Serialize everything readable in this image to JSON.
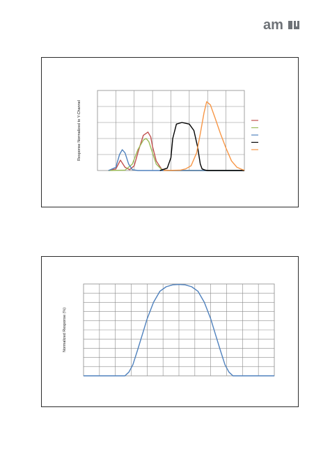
{
  "logo": {
    "text": "am",
    "color": "#6e7277"
  },
  "chart_data": [
    {
      "type": "line",
      "title": "",
      "xlabel": "",
      "ylabel": "Response Normalized to Y-Channel",
      "grid": true,
      "legend": "right",
      "xlim": [
        0,
        8
      ],
      "ylim": [
        0,
        5
      ],
      "series": [
        {
          "color": "#c0504d",
          "x": [
            0.6,
            1.0,
            1.25,
            1.5,
            1.75,
            2.0,
            2.25,
            2.5,
            2.75,
            2.9,
            3.0,
            3.2,
            3.5,
            3.75,
            4.0,
            4.3,
            8.0
          ],
          "values": [
            0,
            0.1,
            0.65,
            0.2,
            0.05,
            0.3,
            1.3,
            2.2,
            2.4,
            2.1,
            1.5,
            0.6,
            0.08,
            0.02,
            0,
            0,
            0
          ]
        },
        {
          "color": "#9bbb59",
          "x": [
            0.6,
            1.5,
            1.9,
            2.2,
            2.5,
            2.65,
            2.8,
            3.0,
            3.2,
            3.5,
            3.8,
            8.0
          ],
          "values": [
            0,
            0.02,
            0.4,
            1.3,
            1.9,
            2.0,
            1.8,
            1.1,
            0.4,
            0.05,
            0,
            0
          ]
        },
        {
          "color": "#4f81bd",
          "x": [
            0.6,
            1.0,
            1.2,
            1.35,
            1.5,
            1.7,
            1.9,
            2.2,
            8.0
          ],
          "values": [
            0,
            0.2,
            1.0,
            1.3,
            1.1,
            0.4,
            0.05,
            0,
            0
          ]
        },
        {
          "color": "#000000",
          "x": [
            3.4,
            3.8,
            4.0,
            4.1,
            4.3,
            4.6,
            5.0,
            5.25,
            5.45,
            5.6,
            5.7,
            5.85,
            6.0,
            6.2,
            8.0
          ],
          "values": [
            0,
            0.15,
            0.8,
            2.0,
            2.9,
            3.0,
            2.9,
            2.5,
            1.5,
            0.4,
            0.1,
            0.03,
            0,
            0,
            0
          ]
        },
        {
          "color": "#f79646",
          "x": [
            3.6,
            4.5,
            4.8,
            5.1,
            5.4,
            5.6,
            5.8,
            5.95,
            6.15,
            6.4,
            6.7,
            7.0,
            7.3,
            7.6,
            7.9,
            8.0
          ],
          "values": [
            0,
            0.02,
            0.1,
            0.3,
            1.1,
            2.3,
            3.6,
            4.3,
            4.1,
            3.3,
            2.3,
            1.4,
            0.6,
            0.2,
            0.05,
            0.02
          ]
        }
      ]
    },
    {
      "type": "line",
      "title": "",
      "xlabel": "",
      "ylabel": "Normalized Response (%)",
      "grid": true,
      "xlim": [
        0,
        12
      ],
      "ylim": [
        0,
        100
      ],
      "series": [
        {
          "color": "#4f81bd",
          "x": [
            0,
            2.6,
            2.85,
            3.1,
            3.4,
            3.7,
            4.0,
            4.4,
            4.8,
            5.2,
            5.6,
            6.0,
            6.4,
            6.8,
            7.2,
            7.6,
            8.0,
            8.3,
            8.6,
            8.9,
            9.15,
            9.4,
            12
          ],
          "values": [
            0,
            0,
            4,
            12,
            28,
            45,
            62,
            80,
            92,
            97,
            99,
            99.5,
            99,
            97,
            92,
            80,
            62,
            45,
            28,
            12,
            4,
            0,
            0
          ]
        }
      ]
    }
  ]
}
